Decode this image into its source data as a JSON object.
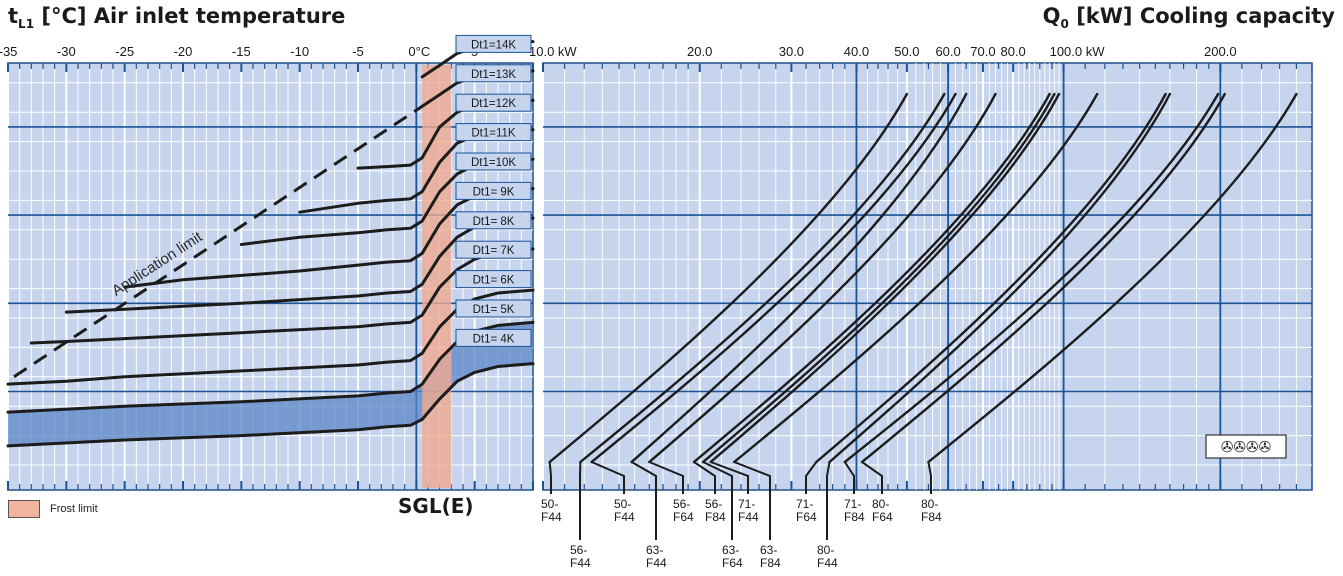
{
  "left_title_main": "t",
  "left_title_sub": "L1",
  "left_title_rest": " [°C] Air inlet temperature",
  "right_title_main": "Q",
  "right_title_sub": "0",
  "right_title_rest": " [kW] Cooling capacity",
  "legend_label": "Frost limit",
  "model_label": "SGL(E)",
  "application_limit_label": "Application limit",
  "fan_symbol": "✇✇✇✇",
  "chart_data": [
    {
      "type": "line",
      "xlabel": "t L1 [°C] Air inlet temperature",
      "x_ticks": [
        -35,
        -30,
        -25,
        -20,
        -15,
        -10,
        -5,
        0,
        5
      ],
      "x_tick_labels": [
        "-35",
        "-30",
        "-25",
        "-20",
        "-15",
        "-10",
        "-5",
        "0°C",
        "5"
      ],
      "xlim": [
        -35,
        10
      ],
      "frost_limit_band": [
        0.5,
        3.0
      ],
      "dt_labels": [
        "Dt1=14K",
        "Dt1=13K",
        "Dt1=12K",
        "Dt1=11K",
        "Dt1=10K",
        "Dt1= 9K",
        "Dt1= 8K",
        "Dt1= 7K",
        "Dt1= 6K",
        "Dt1= 5K",
        "Dt1= 4K"
      ],
      "series": [
        {
          "name": "Dt1=14K",
          "x": [
            0.5,
            2.0,
            3.5,
            5.0,
            7.0,
            10.0
          ],
          "y": [
            13.2,
            13.6,
            14.0,
            14.2,
            14.35,
            14.4
          ]
        },
        {
          "name": "Dt1=13K",
          "x": [
            0.5,
            2.0,
            3.5,
            5.0,
            7.0,
            10.0
          ],
          "y": [
            12.2,
            12.6,
            13.0,
            13.2,
            13.35,
            13.4
          ]
        },
        {
          "name": "Dt1=12K",
          "x": [
            -5.0,
            -2.5,
            -0.5,
            0.5,
            2.0,
            3.5,
            5.0,
            7.0,
            10.0
          ],
          "y": [
            10.1,
            10.15,
            10.2,
            10.45,
            11.5,
            12.0,
            12.25,
            12.35,
            12.4
          ]
        },
        {
          "name": "Dt1=11K",
          "x": [
            -10.0,
            -5.0,
            -2.5,
            -0.5,
            0.5,
            2.0,
            3.5,
            5.0,
            7.0,
            10.0
          ],
          "y": [
            8.6,
            8.9,
            9.0,
            9.05,
            9.3,
            10.3,
            10.95,
            11.2,
            11.35,
            11.4
          ]
        },
        {
          "name": "Dt1=10K",
          "x": [
            -15.0,
            -10.0,
            -5.0,
            -2.5,
            -0.5,
            0.5,
            2.0,
            3.5,
            5.0,
            7.0,
            10.0
          ],
          "y": [
            7.5,
            7.75,
            7.9,
            8.0,
            8.05,
            8.3,
            9.3,
            9.9,
            10.2,
            10.35,
            10.4
          ]
        },
        {
          "name": "Dt1= 9K",
          "x": [
            -25.0,
            -20.0,
            -10.0,
            -5.0,
            -2.5,
            -0.5,
            0.5,
            2.0,
            3.5,
            5.0,
            7.0,
            10.0
          ],
          "y": [
            6.05,
            6.3,
            6.6,
            6.8,
            6.9,
            6.95,
            7.2,
            8.2,
            8.85,
            9.15,
            9.3,
            9.4
          ]
        },
        {
          "name": "Dt1= 8K",
          "x": [
            -30.0,
            -25.0,
            -15.0,
            -5.0,
            -2.5,
            -0.5,
            0.5,
            2.0,
            3.5,
            5.0,
            7.0,
            10.0
          ],
          "y": [
            5.2,
            5.3,
            5.5,
            5.75,
            5.85,
            5.9,
            6.15,
            7.1,
            7.75,
            8.1,
            8.3,
            8.4
          ]
        },
        {
          "name": "Dt1= 7K",
          "x": [
            -33.0,
            -30.0,
            -25.0,
            -15.0,
            -5.0,
            -2.5,
            -0.5,
            0.5,
            2.0,
            3.5,
            5.0,
            7.0,
            10.0
          ],
          "y": [
            4.15,
            4.2,
            4.3,
            4.5,
            4.7,
            4.8,
            4.85,
            5.1,
            6.05,
            6.65,
            7.0,
            7.25,
            7.35
          ]
        },
        {
          "name": "Dt1= 6K",
          "x": [
            -35.0,
            -30.0,
            -25.0,
            -15.0,
            -5.0,
            -2.5,
            -0.5,
            0.5,
            2.0,
            3.5,
            5.0,
            7.0,
            10.0
          ],
          "y": [
            2.75,
            2.85,
            3.0,
            3.2,
            3.4,
            3.5,
            3.55,
            3.8,
            4.7,
            5.3,
            5.65,
            5.85,
            5.95
          ]
        },
        {
          "name": "Dt1= 5K",
          "x": [
            -35.0,
            -25.0,
            -15.0,
            -5.0,
            -2.5,
            -0.5,
            0.5,
            2.0,
            3.5,
            5.0,
            7.0,
            10.0
          ],
          "y": [
            1.8,
            2.0,
            2.15,
            2.35,
            2.45,
            2.5,
            2.75,
            3.6,
            4.2,
            4.55,
            4.75,
            4.85
          ]
        },
        {
          "name": "Dt1= 4K",
          "x": [
            -35.0,
            -25.0,
            -15.0,
            -5.0,
            -2.5,
            -0.5,
            0.5,
            2.0,
            3.5,
            5.0,
            7.0,
            10.0
          ],
          "y": [
            0.65,
            0.85,
            1.0,
            1.2,
            1.3,
            1.35,
            1.55,
            2.25,
            2.85,
            3.15,
            3.35,
            3.45
          ]
        }
      ],
      "application_limit": {
        "x": [
          -35.0,
          0.5
        ],
        "y": [
          3.0,
          12.2
        ]
      }
    },
    {
      "type": "line",
      "xlabel": "Q0 [kW] Cooling capacity",
      "x_scale": "log",
      "xlim": [
        10,
        300
      ],
      "x_ticks": [
        10,
        20,
        30,
        40,
        50,
        60,
        70,
        80,
        100,
        200
      ],
      "x_tick_labels": [
        "10.0 kW",
        "20.0",
        "30.0",
        "40.0",
        "50.0",
        "60.0",
        "70.0",
        "80.0",
        "100.0 kW",
        "200.0"
      ],
      "series": [
        {
          "name": "50-F44",
          "x_start": 10.3,
          "x_end": 50.0
        },
        {
          "name": "56-F44",
          "x_start": 11.8,
          "x_end": 59.0
        },
        {
          "name": "50-F44",
          "x_start": 12.4,
          "x_end": 62.0
        },
        {
          "name": "63-F44",
          "x_start": 14.8,
          "x_end": 65.0
        },
        {
          "name": "56-F64",
          "x_start": 16.0,
          "x_end": 74.0
        },
        {
          "name": "56-F84",
          "x_start": 19.5,
          "x_end": 94.0
        },
        {
          "name": "63-F64",
          "x_start": 20.3,
          "x_end": 96.0
        },
        {
          "name": "71-F44",
          "x_start": 21.0,
          "x_end": 98.0
        },
        {
          "name": "63-F84",
          "x_start": 23.3,
          "x_end": 116.0
        },
        {
          "name": "71-F64",
          "x_start": 33.5,
          "x_end": 157.0
        },
        {
          "name": "80-F44",
          "x_start": 35.5,
          "x_end": 160.0
        },
        {
          "name": "71-F84",
          "x_start": 38.0,
          "x_end": 198.0
        },
        {
          "name": "80-F64",
          "x_start": 41.0,
          "x_end": 204.0
        },
        {
          "name": "80-F84",
          "x_start": 55.0,
          "x_end": 280.0
        }
      ]
    }
  ]
}
